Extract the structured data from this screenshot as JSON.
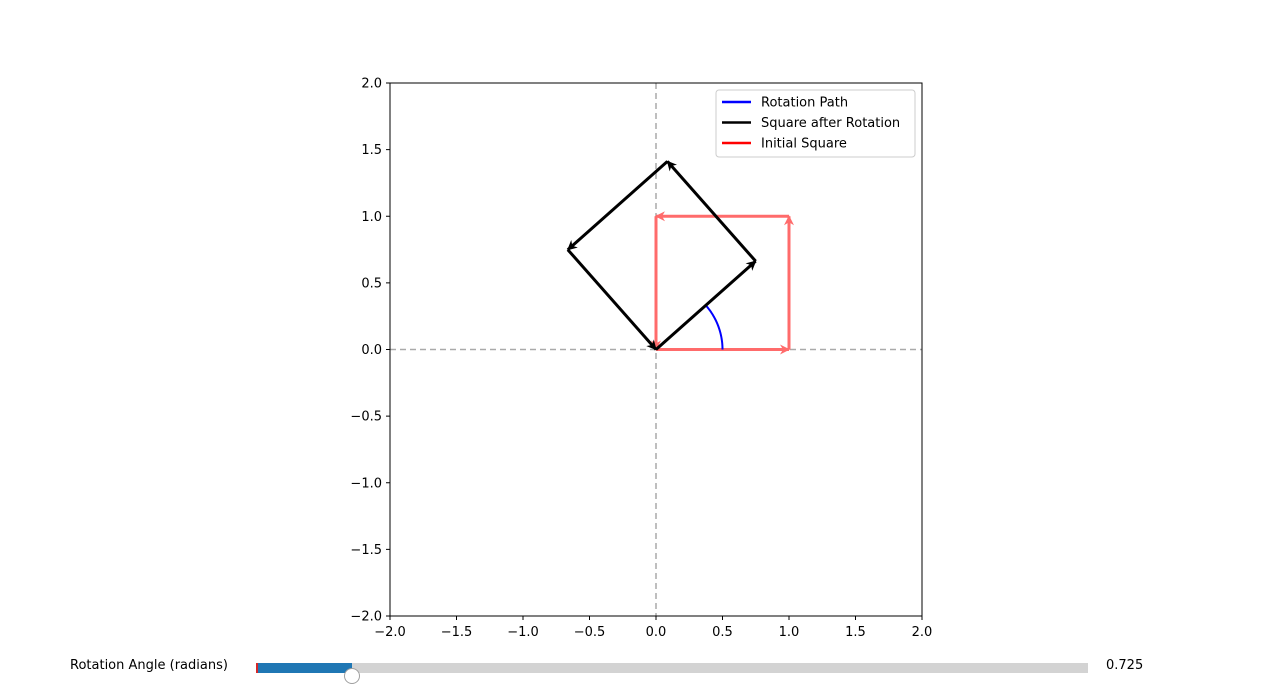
{
  "chart_data": {
    "type": "line",
    "title": "",
    "xlabel": "",
    "ylabel": "",
    "xlim": [
      -2.0,
      2.0
    ],
    "ylim": [
      -2.0,
      2.0
    ],
    "x_ticks": [
      "−2.0",
      "−1.5",
      "−1.0",
      "−0.5",
      "0.0",
      "0.5",
      "1.0",
      "1.5",
      "2.0"
    ],
    "y_ticks": [
      "2.0",
      "1.5",
      "1.0",
      "0.5",
      "0.0",
      "−0.5",
      "−1.0",
      "−1.5",
      "−2.0"
    ],
    "grid": false,
    "reference_lines": {
      "x": 0,
      "y": 0,
      "style": "dashed",
      "color": "#aaaaaa"
    },
    "legend_position": "upper right",
    "legend": [
      {
        "label": "Rotation Path",
        "color": "#0000ff"
      },
      {
        "label": "Square after Rotation",
        "color": "#000000"
      },
      {
        "label": "Initial Square",
        "color": "#ff0000"
      }
    ],
    "series": [
      {
        "name": "Initial Square",
        "color": "#ff6b6b",
        "style": "arrows",
        "points": [
          [
            0,
            0
          ],
          [
            1,
            0
          ],
          [
            1,
            1
          ],
          [
            0,
            1
          ],
          [
            0,
            0
          ]
        ]
      },
      {
        "name": "Square after Rotation",
        "color": "#000000",
        "style": "arrows",
        "points": [
          [
            0,
            0
          ],
          [
            0.749,
            0.663
          ],
          [
            0.086,
            1.412
          ],
          [
            -0.663,
            0.749
          ],
          [
            0,
            0
          ]
        ]
      },
      {
        "name": "Rotation Path",
        "color": "#0000ff",
        "style": "arc",
        "radius": 0.5,
        "start_angle": 0,
        "end_angle": 0.725
      }
    ]
  },
  "slider": {
    "label": "Rotation Angle (radians)",
    "value": 0.725,
    "value_text": "0.725",
    "min": 0,
    "max": 6.2832,
    "fill_color": "#1f77b4",
    "track_color": "#d3d3d3"
  }
}
